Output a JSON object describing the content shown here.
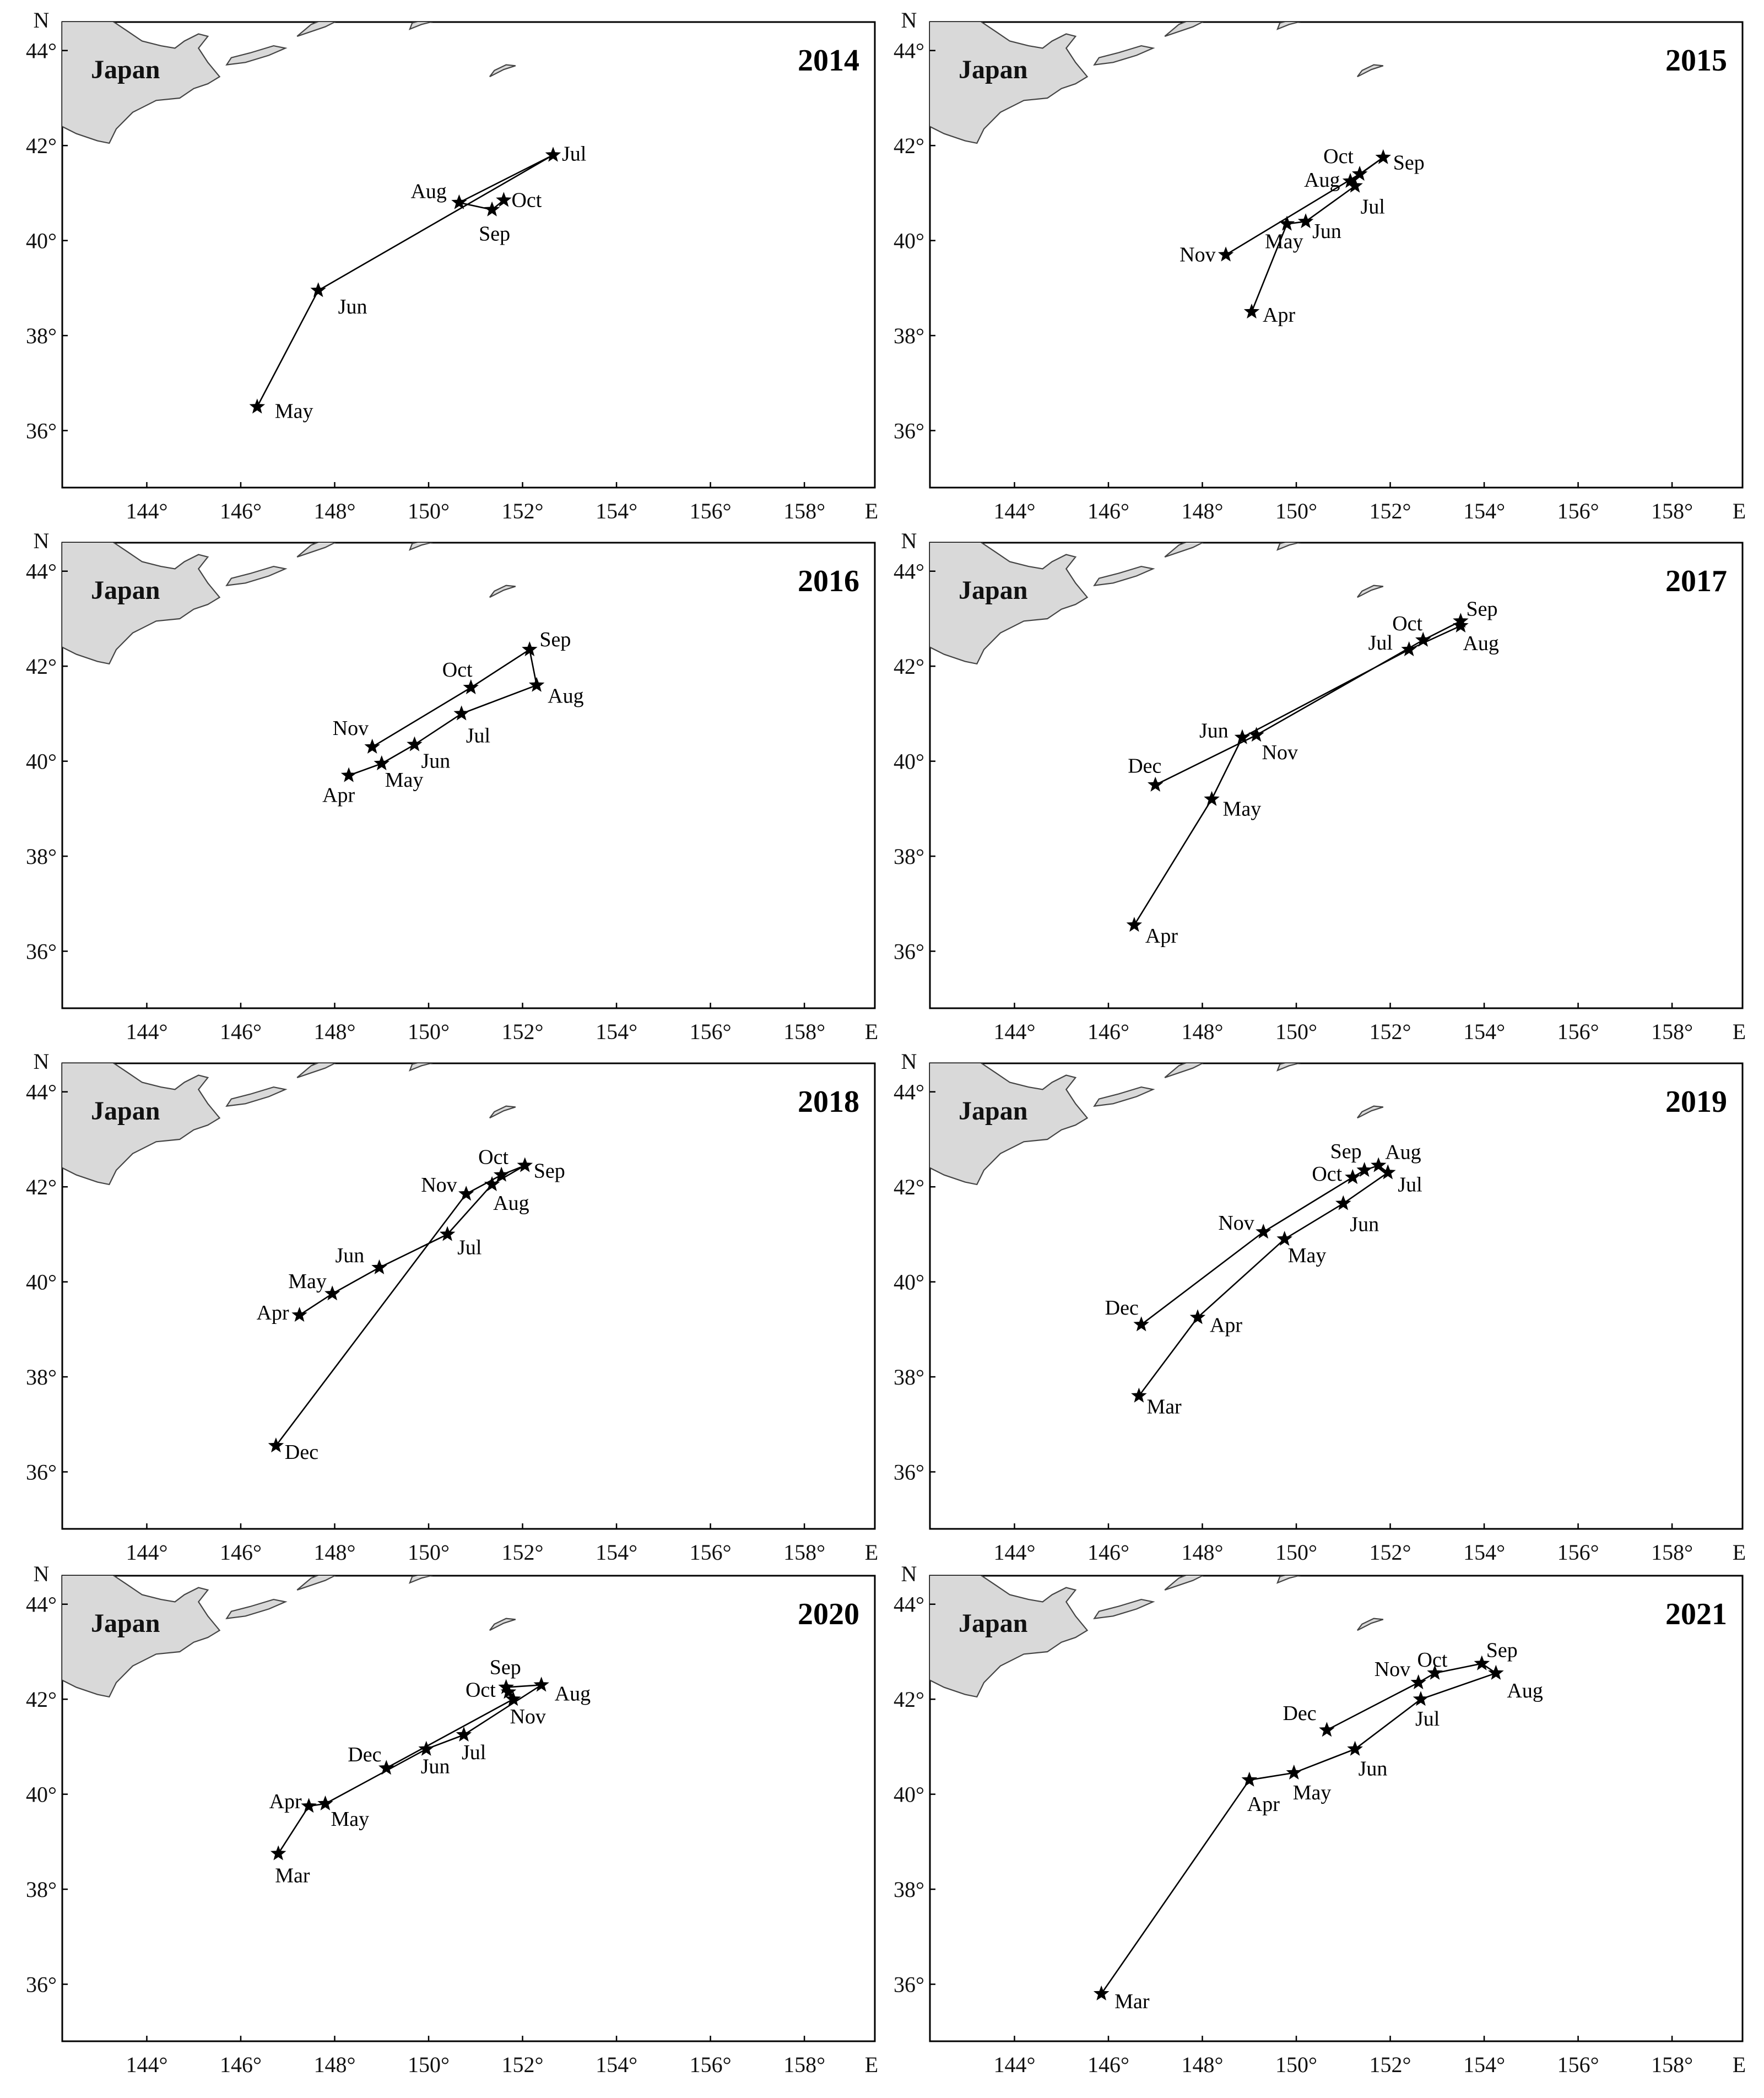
{
  "land_label": "Japan",
  "axis_letters": {
    "lat": "N",
    "lon": "E"
  },
  "lat_ticks": [
    "44°",
    "42°",
    "40°",
    "38°",
    "36°"
  ],
  "lon_ticks": [
    "144°",
    "146°",
    "148°",
    "150°",
    "152°",
    "154°",
    "156°",
    "158°"
  ],
  "colors": {
    "land": "#d9d9d9",
    "track": "#000000",
    "frame": "#000000"
  },
  "chart_data": [
    {
      "type": "scatter",
      "title": "2014",
      "xlim": [
        142.2,
        159.5
      ],
      "ylim": [
        34.8,
        44.6
      ],
      "points": [
        {
          "label": "May",
          "lon": 146.35,
          "lat": 36.5
        },
        {
          "label": "Jun",
          "lon": 147.65,
          "lat": 38.95
        },
        {
          "label": "Jul",
          "lon": 152.65,
          "lat": 41.8
        },
        {
          "label": "Aug",
          "lon": 150.65,
          "lat": 40.8
        },
        {
          "label": "Sep",
          "lon": 151.35,
          "lat": 40.65
        },
        {
          "label": "Oct",
          "lon": 151.6,
          "lat": 40.85
        }
      ]
    },
    {
      "type": "scatter",
      "title": "2015",
      "xlim": [
        142.2,
        159.5
      ],
      "ylim": [
        34.8,
        44.6
      ],
      "points": [
        {
          "label": "Apr",
          "lon": 149.05,
          "lat": 38.5
        },
        {
          "label": "May",
          "lon": 149.8,
          "lat": 40.35
        },
        {
          "label": "Jun",
          "lon": 150.2,
          "lat": 40.4
        },
        {
          "label": "Jul",
          "lon": 151.25,
          "lat": 41.15
        },
        {
          "label": "Aug",
          "lon": 151.15,
          "lat": 41.25
        },
        {
          "label": "Sep",
          "lon": 151.85,
          "lat": 41.75
        },
        {
          "label": "Oct",
          "lon": 151.35,
          "lat": 41.4
        },
        {
          "label": "Nov",
          "lon": 148.5,
          "lat": 39.7
        }
      ]
    },
    {
      "type": "scatter",
      "title": "2016",
      "xlim": [
        142.2,
        159.5
      ],
      "ylim": [
        34.8,
        44.6
      ],
      "points": [
        {
          "label": "Apr",
          "lon": 148.3,
          "lat": 39.7
        },
        {
          "label": "May",
          "lon": 149.0,
          "lat": 39.95
        },
        {
          "label": "Jun",
          "lon": 149.7,
          "lat": 40.35
        },
        {
          "label": "Jul",
          "lon": 150.7,
          "lat": 41.0
        },
        {
          "label": "Aug",
          "lon": 152.3,
          "lat": 41.6
        },
        {
          "label": "Sep",
          "lon": 152.15,
          "lat": 42.35
        },
        {
          "label": "Oct",
          "lon": 150.9,
          "lat": 41.55
        },
        {
          "label": "Nov",
          "lon": 148.8,
          "lat": 40.3
        }
      ]
    },
    {
      "type": "scatter",
      "title": "2017",
      "xlim": [
        142.2,
        159.5
      ],
      "ylim": [
        34.8,
        44.6
      ],
      "points": [
        {
          "label": "Apr",
          "lon": 146.55,
          "lat": 36.55
        },
        {
          "label": "May",
          "lon": 148.2,
          "lat": 39.2
        },
        {
          "label": "Jun",
          "lon": 148.85,
          "lat": 40.5
        },
        {
          "label": "Jul",
          "lon": 152.4,
          "lat": 42.35
        },
        {
          "label": "Aug",
          "lon": 153.5,
          "lat": 42.85
        },
        {
          "label": "Sep",
          "lon": 153.5,
          "lat": 42.95
        },
        {
          "label": "Oct",
          "lon": 152.7,
          "lat": 42.55
        },
        {
          "label": "Nov",
          "lon": 149.15,
          "lat": 40.55
        },
        {
          "label": "Dec",
          "lon": 147.0,
          "lat": 39.5
        }
      ]
    },
    {
      "type": "scatter",
      "title": "2018",
      "xlim": [
        142.2,
        159.5
      ],
      "ylim": [
        34.8,
        44.6
      ],
      "points": [
        {
          "label": "Apr",
          "lon": 147.25,
          "lat": 39.3
        },
        {
          "label": "May",
          "lon": 147.95,
          "lat": 39.75
        },
        {
          "label": "Jun",
          "lon": 148.95,
          "lat": 40.3
        },
        {
          "label": "Jul",
          "lon": 150.4,
          "lat": 41.0
        },
        {
          "label": "Aug",
          "lon": 151.35,
          "lat": 42.05
        },
        {
          "label": "Sep",
          "lon": 152.05,
          "lat": 42.45
        },
        {
          "label": "Oct",
          "lon": 151.55,
          "lat": 42.25
        },
        {
          "label": "Nov",
          "lon": 150.8,
          "lat": 41.85
        },
        {
          "label": "Dec",
          "lon": 146.75,
          "lat": 36.55
        }
      ]
    },
    {
      "type": "scatter",
      "title": "2019",
      "xlim": [
        142.2,
        159.5
      ],
      "ylim": [
        34.8,
        44.6
      ],
      "points": [
        {
          "label": "Mar",
          "lon": 146.65,
          "lat": 37.6
        },
        {
          "label": "Apr",
          "lon": 147.9,
          "lat": 39.25
        },
        {
          "label": "May",
          "lon": 149.75,
          "lat": 40.9
        },
        {
          "label": "Jun",
          "lon": 151.0,
          "lat": 41.65
        },
        {
          "label": "Jul",
          "lon": 151.95,
          "lat": 42.3
        },
        {
          "label": "Aug",
          "lon": 151.75,
          "lat": 42.45
        },
        {
          "label": "Sep",
          "lon": 151.45,
          "lat": 42.35
        },
        {
          "label": "Oct",
          "lon": 151.2,
          "lat": 42.2
        },
        {
          "label": "Nov",
          "lon": 149.3,
          "lat": 41.05
        },
        {
          "label": "Dec",
          "lon": 146.7,
          "lat": 39.1
        }
      ]
    },
    {
      "type": "scatter",
      "title": "2020",
      "xlim": [
        142.2,
        159.5
      ],
      "ylim": [
        34.8,
        44.6
      ],
      "points": [
        {
          "label": "Mar",
          "lon": 146.8,
          "lat": 38.75
        },
        {
          "label": "Apr",
          "lon": 147.45,
          "lat": 39.75
        },
        {
          "label": "May",
          "lon": 147.8,
          "lat": 39.8
        },
        {
          "label": "Jun",
          "lon": 149.95,
          "lat": 40.95
        },
        {
          "label": "Jul",
          "lon": 150.75,
          "lat": 41.25
        },
        {
          "label": "Aug",
          "lon": 152.4,
          "lat": 42.3
        },
        {
          "label": "Sep",
          "lon": 151.65,
          "lat": 42.25
        },
        {
          "label": "Oct",
          "lon": 151.7,
          "lat": 42.15
        },
        {
          "label": "Nov",
          "lon": 151.8,
          "lat": 42.0
        },
        {
          "label": "Dec",
          "lon": 149.1,
          "lat": 40.55
        }
      ]
    },
    {
      "type": "scatter",
      "title": "2021",
      "xlim": [
        142.2,
        159.5
      ],
      "ylim": [
        34.8,
        44.6
      ],
      "points": [
        {
          "label": "Mar",
          "lon": 145.85,
          "lat": 35.8
        },
        {
          "label": "Apr",
          "lon": 149.0,
          "lat": 40.3
        },
        {
          "label": "May",
          "lon": 149.95,
          "lat": 40.45
        },
        {
          "label": "Jun",
          "lon": 151.25,
          "lat": 40.95
        },
        {
          "label": "Jul",
          "lon": 152.65,
          "lat": 42.0
        },
        {
          "label": "Aug",
          "lon": 154.25,
          "lat": 42.55
        },
        {
          "label": "Sep",
          "lon": 153.95,
          "lat": 42.75
        },
        {
          "label": "Oct",
          "lon": 152.95,
          "lat": 42.55
        },
        {
          "label": "Nov",
          "lon": 152.6,
          "lat": 42.35
        },
        {
          "label": "Dec",
          "lon": 150.65,
          "lat": 41.35
        }
      ]
    }
  ]
}
